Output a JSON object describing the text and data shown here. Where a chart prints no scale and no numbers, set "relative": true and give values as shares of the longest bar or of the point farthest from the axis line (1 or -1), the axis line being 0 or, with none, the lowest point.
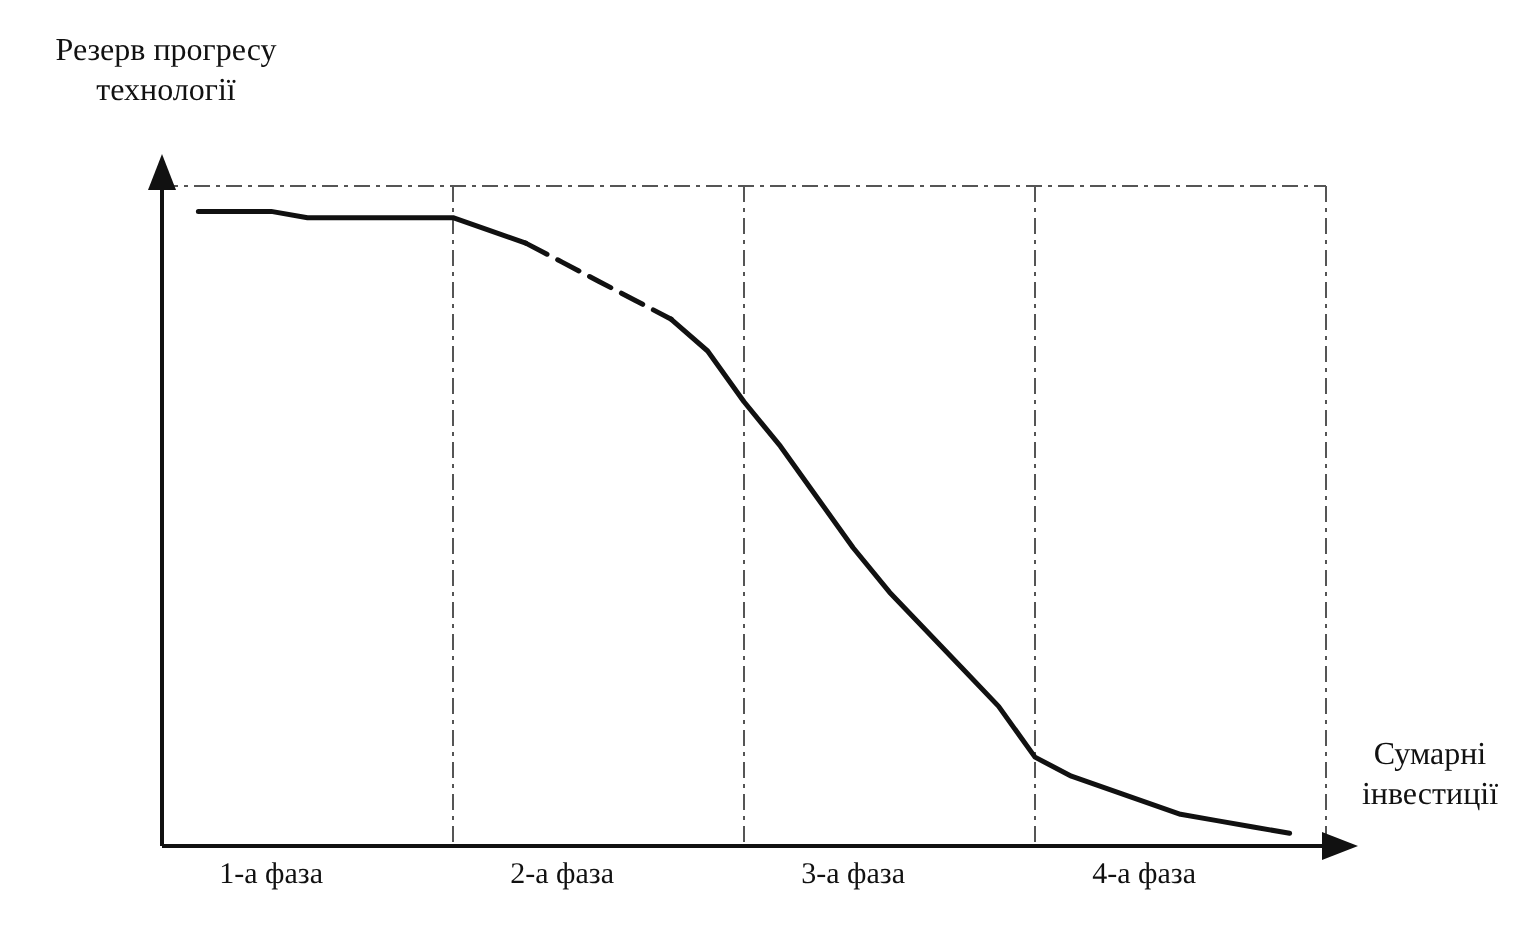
{
  "chart_data": {
    "type": "line",
    "relative": true,
    "ylabel": "Резерв прогресу технології",
    "xlabel": "Сумарні інвестиції",
    "categories": [
      null,
      null,
      null,
      "1-а фаза",
      null,
      null,
      null,
      null,
      null,
      null,
      null,
      "2-а фаза",
      null,
      null,
      null,
      null,
      null,
      null,
      null,
      "3-а фаза",
      null,
      null,
      null,
      null,
      null,
      null,
      null,
      "4-а фаза",
      null,
      null,
      null,
      null,
      null
    ],
    "series": [
      {
        "color": "#111111",
        "line_style": "solid",
        "values": [
          null,
          1.0,
          1.0,
          1.0,
          0.99,
          0.99,
          0.99,
          0.99,
          0.99,
          0.97,
          0.95,
          null,
          null,
          null,
          null,
          null,
          null,
          null,
          null,
          null,
          null,
          null,
          null,
          null,
          null,
          null,
          null,
          null,
          null,
          null,
          null,
          null,
          null
        ]
      },
      {
        "color": "#111111",
        "line_style": "dashed",
        "values": [
          null,
          null,
          null,
          null,
          null,
          null,
          null,
          null,
          null,
          null,
          0.95,
          0.92,
          0.89,
          0.86,
          0.83,
          null,
          null,
          null,
          null,
          null,
          null,
          null,
          null,
          null,
          null,
          null,
          null,
          null,
          null,
          null,
          null,
          null,
          null
        ]
      },
      {
        "color": "#111111",
        "line_style": "solid",
        "values": [
          null,
          null,
          null,
          null,
          null,
          null,
          null,
          null,
          null,
          null,
          null,
          null,
          null,
          null,
          0.83,
          0.78,
          0.7,
          0.63,
          0.55,
          0.47,
          0.4,
          0.34,
          0.28,
          0.22,
          0.14,
          0.11,
          0.09,
          0.07,
          0.05,
          0.04,
          0.03,
          0.02,
          null
        ]
      }
    ],
    "grid": true,
    "marker": "none"
  }
}
